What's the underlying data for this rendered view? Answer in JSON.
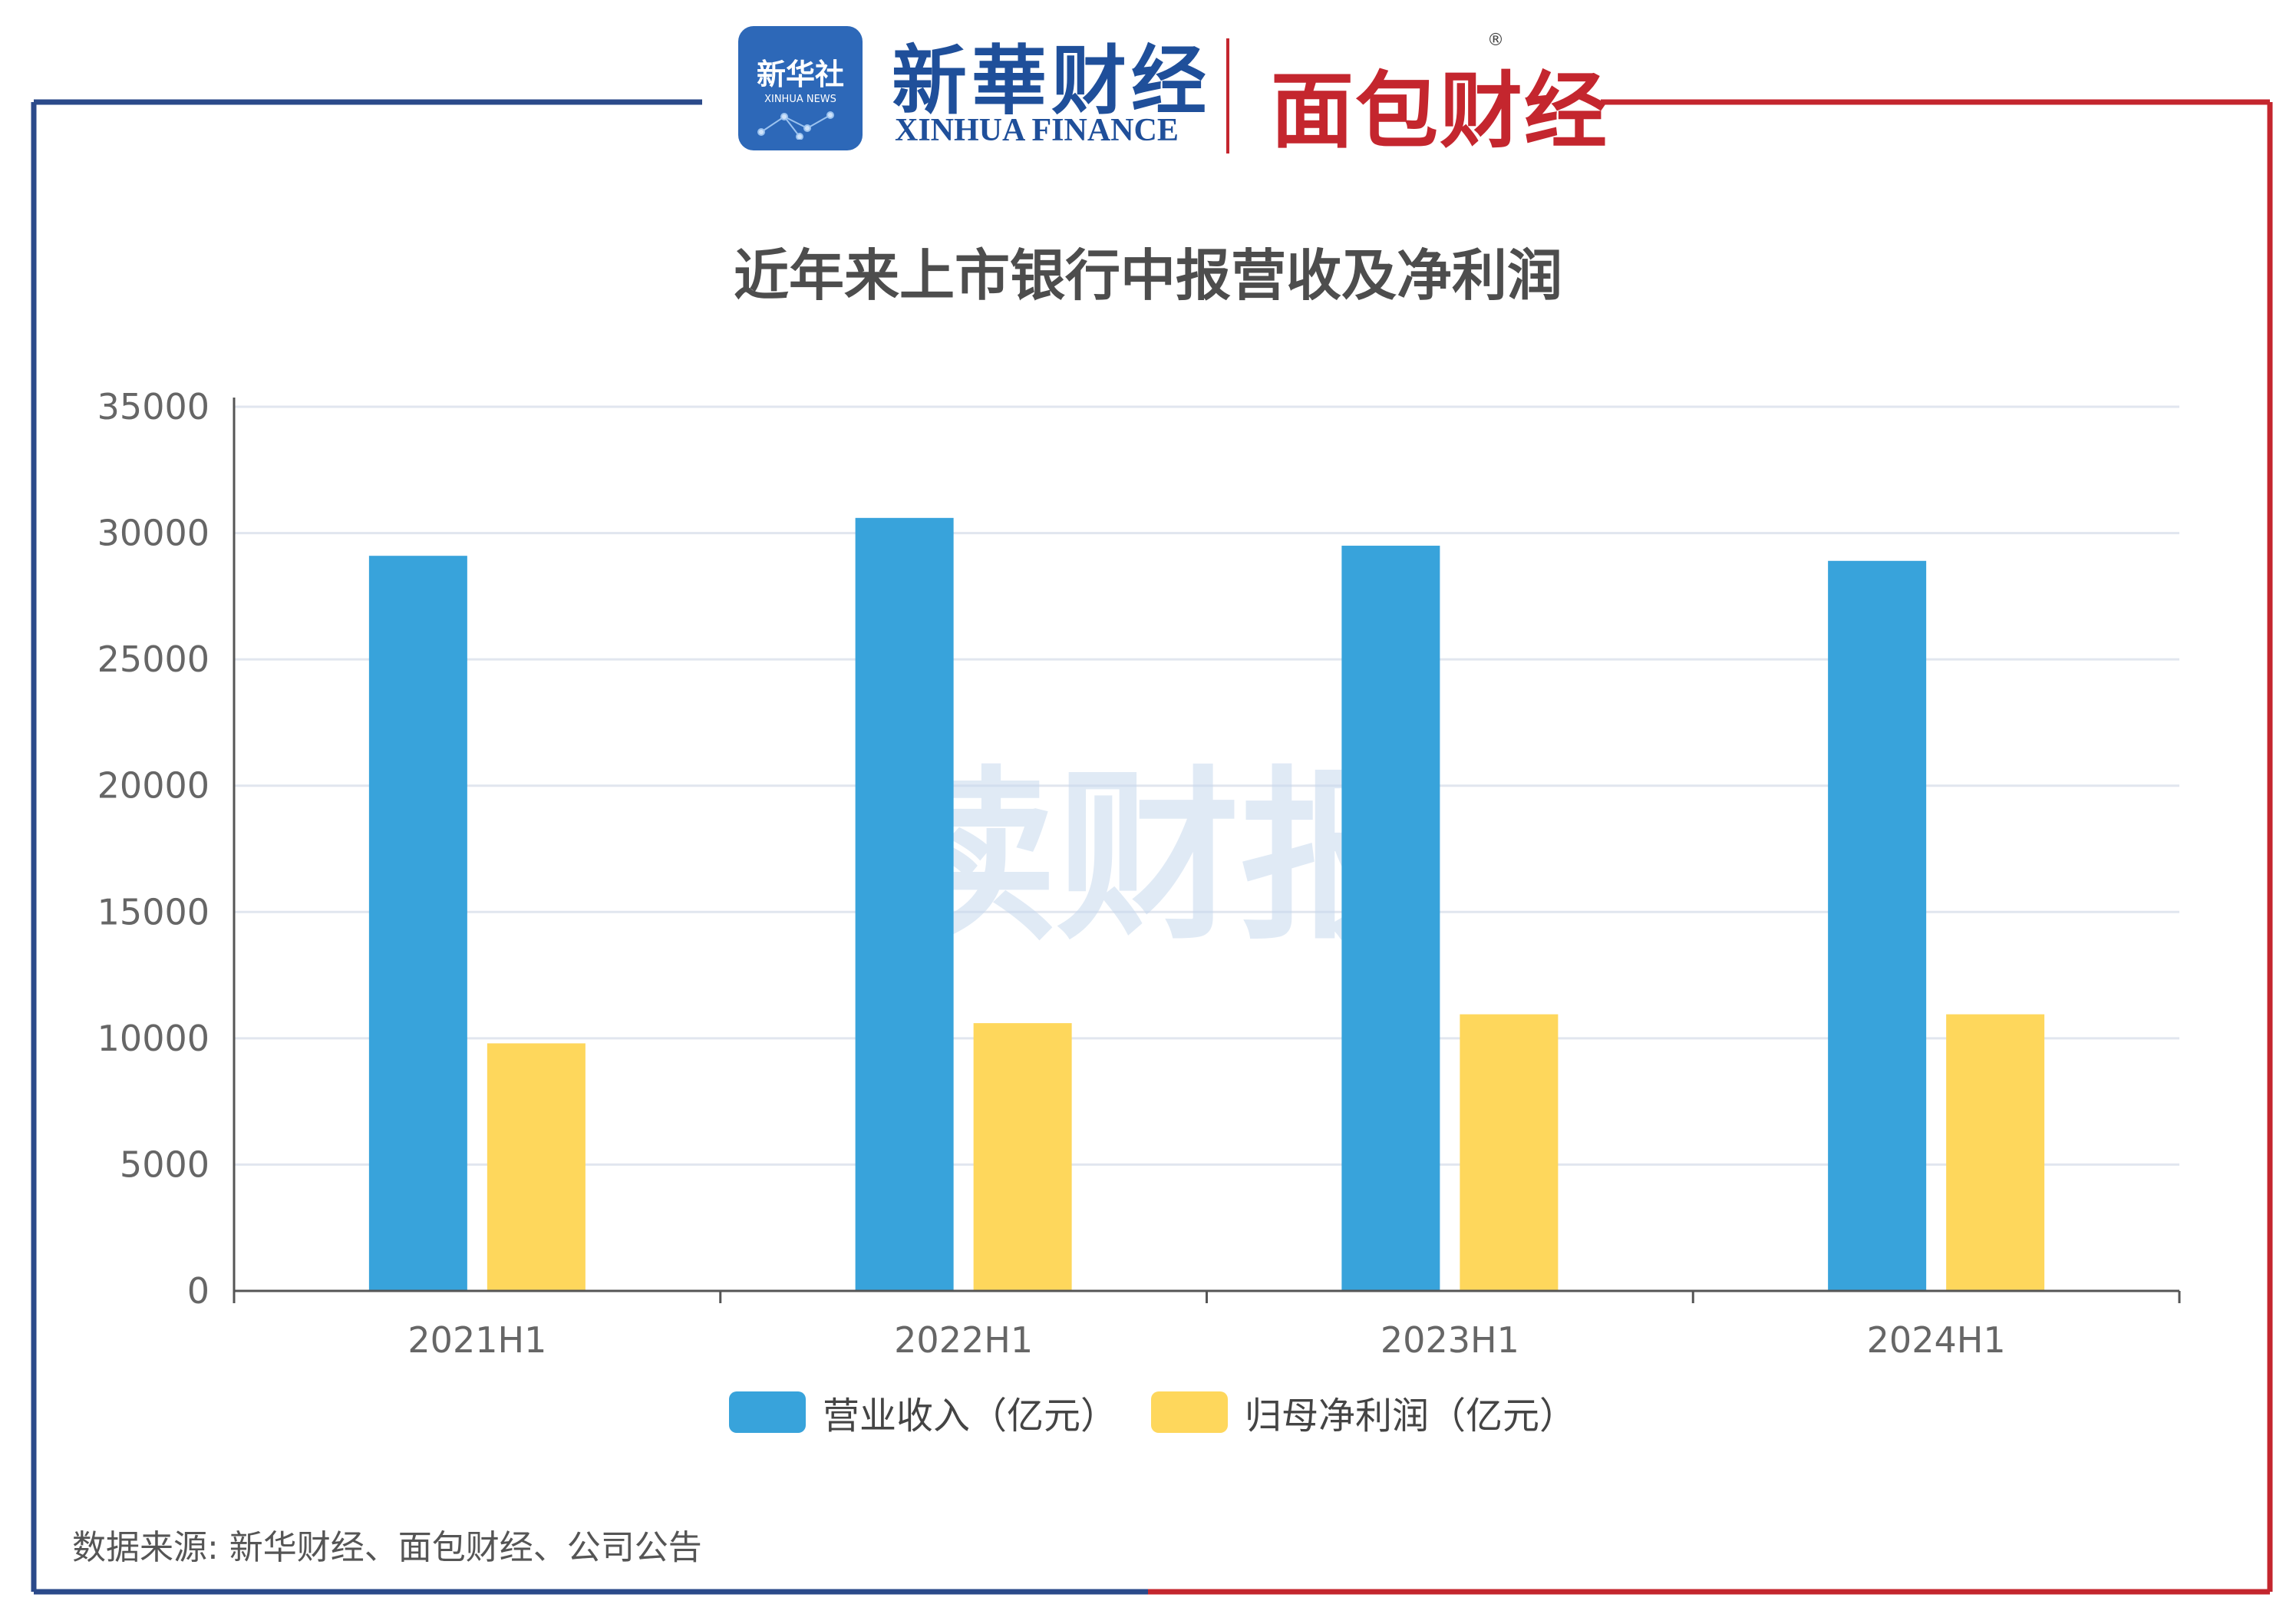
{
  "header": {
    "xinhua_badge": "新华社",
    "xinhua_badge_sub": "XINHUA NEWS",
    "xinhua_finance_cn": "新華财经",
    "xinhua_finance_en": "XINHUA FINANCE",
    "mianbao_finance": "面包财经",
    "registered_mark": "®"
  },
  "watermark": "读财报",
  "source": "数据来源: 新华财经、面包财经、公司公告",
  "colors": {
    "frame_left": "#2b4a8a",
    "frame_right": "#c4262e",
    "revenue": "#38a3db",
    "profit": "#fed75c",
    "grid": "#e1e6ef",
    "axis": "#555555",
    "watermark": "#c7d9ee"
  },
  "chart_data": {
    "type": "bar",
    "title": "近年来上市银行中报营收及净利润",
    "categories": [
      "2021H1",
      "2022H1",
      "2023H1",
      "2024H1"
    ],
    "series": [
      {
        "name": "营业收入（亿元）",
        "color": "#38a3db",
        "values": [
          29100,
          30600,
          29500,
          28900
        ]
      },
      {
        "name": "归母净利润（亿元）",
        "color": "#fed75c",
        "values": [
          9800,
          10600,
          10950,
          10950
        ]
      }
    ],
    "yticks": [
      "0",
      "5000",
      "10000",
      "15000",
      "20000",
      "25000",
      "30000",
      "35000"
    ],
    "ylim": [
      0,
      35000
    ],
    "grid": true,
    "legend_position": "bottom-center"
  }
}
